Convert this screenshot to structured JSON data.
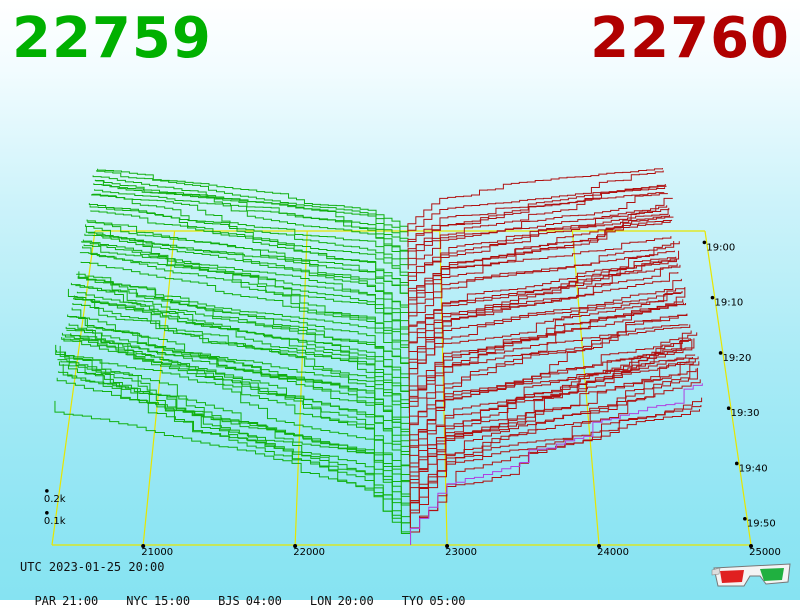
{
  "header": {
    "bid_price": "22759",
    "ask_price": "22760"
  },
  "colors": {
    "bid": "#00b000",
    "ask": "#b00000",
    "bid_line": "#10b010",
    "ask_line": "#b01010",
    "grid": "#e6e600",
    "newest_line": "#b040e0"
  },
  "chart_data": {
    "type": "area",
    "description_style": "3d-depth-of-market-waterfall",
    "x": {
      "ticks": [
        21000,
        22000,
        23000,
        24000,
        25000
      ],
      "tick_labels": [
        "21000",
        "22000",
        "23000",
        "24000",
        "25000"
      ],
      "range": [
        20400,
        25000
      ]
    },
    "z": {
      "tick_labels": [
        "19:00",
        "19:10",
        "19:20",
        "19:30",
        "19:40",
        "19:50"
      ]
    },
    "y": {
      "tick_labels": [
        "0.1k",
        "0.2k"
      ]
    },
    "mid_price": 22759.5
  },
  "footer": {
    "utc": "UTC 2023-01-25 20:00",
    "zones": [
      {
        "name": "PAR",
        "time": "21:00"
      },
      {
        "name": "NYC",
        "time": "15:00"
      },
      {
        "name": "BJS",
        "time": "04:00"
      },
      {
        "name": "LON",
        "time": "20:00"
      },
      {
        "name": "TYO",
        "time": "05:00"
      }
    ]
  },
  "icons": {
    "glasses": "3d-glasses-icon"
  }
}
